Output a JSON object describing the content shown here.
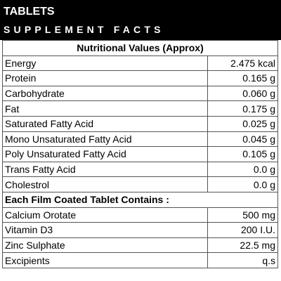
{
  "header": {
    "title": "TABLETS",
    "subtitle": "SUPPLEMENT FACTS"
  },
  "sections": [
    {
      "heading": "Nutritional Values (Approx)",
      "rows": [
        [
          "Energy",
          "2.475 kcal"
        ],
        [
          "Protein",
          "0.165 g"
        ],
        [
          "Carbohydrate",
          "0.060 g"
        ],
        [
          "Fat",
          "0.175 g"
        ],
        [
          "Saturated Fatty Acid",
          "0.025 g"
        ],
        [
          "Mono Unsaturated Fatty Acid",
          "0.045 g"
        ],
        [
          "Poly Unsaturated Fatty Acid",
          "0.105 g"
        ],
        [
          "Trans Fatty Acid",
          "0.0 g"
        ],
        [
          "Cholestrol",
          "0.0 g"
        ]
      ]
    },
    {
      "heading": "Each Film Coated Tablet Contains :",
      "rows": [
        [
          "Calcium Orotate",
          "500 mg"
        ],
        [
          "Vitamin D3",
          "200 I.U."
        ],
        [
          "Zinc Sulphate",
          "22.5 mg"
        ],
        [
          "Excipients",
          "q.s"
        ]
      ]
    }
  ]
}
